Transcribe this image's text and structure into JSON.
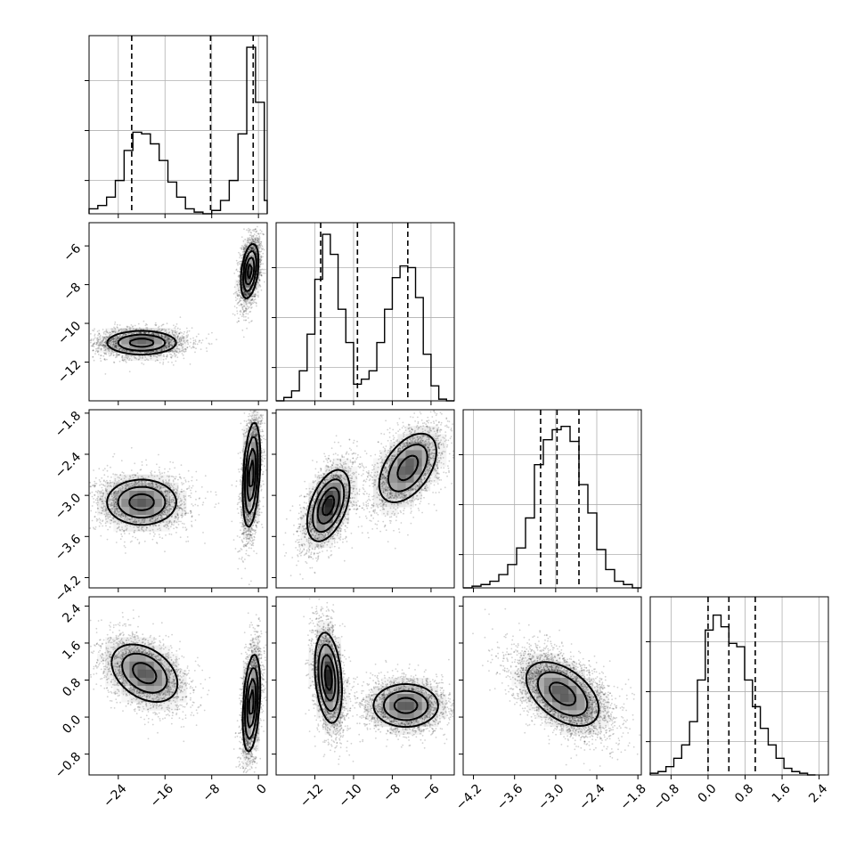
{
  "chart_data": {
    "type": "corner",
    "parameters": [
      {
        "ticks": [
          -24,
          -16,
          -8,
          0
        ],
        "tick_labels": [
          "−24",
          "−16",
          "−8",
          "0"
        ],
        "range": [
          -29,
          1.5
        ],
        "hist": {
          "edges": [
            -29,
            -27.5,
            -26,
            -24.5,
            -23,
            -21.5,
            -20,
            -18.5,
            -17,
            -15.5,
            -14,
            -12.5,
            -11,
            -9.5,
            -8,
            -6.5,
            -5,
            -3.5,
            -2,
            -0.5,
            1,
            1.5
          ],
          "counts": [
            0.03,
            0.05,
            0.1,
            0.2,
            0.38,
            0.49,
            0.48,
            0.42,
            0.32,
            0.19,
            0.1,
            0.03,
            0.01,
            0,
            0.02,
            0.08,
            0.2,
            0.48,
            1.0,
            0.67,
            0.08
          ]
        },
        "quantiles": [
          -21.7,
          -8.2,
          -0.9
        ]
      },
      {
        "ticks": [
          -12,
          -10,
          -8,
          -6
        ],
        "tick_labels": [
          "−12",
          "−10",
          "−8",
          "−6"
        ],
        "range": [
          -14,
          -4.8
        ],
        "hist": {
          "edges": [
            -14,
            -13.6,
            -13.2,
            -12.8,
            -12.4,
            -12,
            -11.6,
            -11.2,
            -10.8,
            -10.4,
            -10,
            -9.6,
            -9.2,
            -8.8,
            -8.4,
            -8,
            -7.6,
            -7.2,
            -6.8,
            -6.4,
            -6,
            -5.6,
            -5.2,
            -4.8
          ],
          "counts": [
            0,
            0.02,
            0.06,
            0.18,
            0.4,
            0.73,
            1.0,
            0.88,
            0.55,
            0.35,
            0.1,
            0.13,
            0.18,
            0.35,
            0.55,
            0.74,
            0.81,
            0.8,
            0.62,
            0.28,
            0.09,
            0.01,
            0
          ]
        },
        "quantiles": [
          -11.7,
          -9.8,
          -7.2
        ]
      },
      {
        "ticks": [
          -4.2,
          -3.6,
          -3.0,
          -2.4,
          -1.8
        ],
        "tick_labels": [
          "−4.2",
          "−3.6",
          "−3.0",
          "−2.4",
          "−1.8"
        ],
        "range": [
          -4.35,
          -1.75
        ],
        "hist": {
          "edges": [
            -4.35,
            -4.22,
            -4.09,
            -3.96,
            -3.83,
            -3.7,
            -3.57,
            -3.44,
            -3.31,
            -3.18,
            -3.05,
            -2.92,
            -2.79,
            -2.66,
            -2.53,
            -2.4,
            -2.27,
            -2.14,
            -2.01,
            -1.88,
            -1.75
          ],
          "counts": [
            0,
            0.01,
            0.02,
            0.04,
            0.08,
            0.14,
            0.24,
            0.42,
            0.74,
            0.89,
            0.95,
            0.97,
            0.88,
            0.62,
            0.45,
            0.23,
            0.11,
            0.04,
            0.02,
            0
          ]
        },
        "quantiles": [
          -3.22,
          -2.98,
          -2.66
        ]
      },
      {
        "ticks": [
          -0.8,
          0.0,
          0.8,
          1.6,
          2.4
        ],
        "tick_labels": [
          "−0.8",
          "0.0",
          "0.8",
          "1.6",
          "2.4"
        ],
        "range": [
          -1.25,
          2.6
        ],
        "hist": {
          "edges": [
            -1.25,
            -1.08,
            -0.91,
            -0.74,
            -0.57,
            -0.4,
            -0.23,
            -0.06,
            0.11,
            0.28,
            0.45,
            0.62,
            0.79,
            0.96,
            1.13,
            1.3,
            1.47,
            1.64,
            1.81,
            1.98,
            2.15,
            2.32
          ],
          "counts": [
            0.01,
            0.02,
            0.05,
            0.1,
            0.18,
            0.32,
            0.57,
            0.87,
            0.96,
            0.89,
            0.79,
            0.77,
            0.57,
            0.41,
            0.28,
            0.18,
            0.1,
            0.04,
            0.02,
            0.01,
            0
          ]
        },
        "quantiles": [
          0.0,
          0.45,
          1.02
        ]
      }
    ],
    "hist_yticks": [
      0.2,
      0.5,
      0.8
    ],
    "pairs": [
      {
        "x": 0,
        "y": 1,
        "modes": [
          {
            "center": [
              -20,
              -11.0
            ],
            "sd": [
              3.2,
              0.55
            ],
            "rot": 0,
            "weight": 1.0,
            "n": 2200
          },
          {
            "center": [
              -1.5,
              -7.3
            ],
            "sd": [
              1.1,
              0.75
            ],
            "rot": 1.15,
            "weight": 1.35,
            "n": 2200
          }
        ]
      },
      {
        "x": 0,
        "y": 2,
        "modes": [
          {
            "center": [
              -20,
              -3.1
            ],
            "sd": [
              3.2,
              0.3
            ],
            "rot": 0,
            "weight": 1.0,
            "n": 2200
          },
          {
            "center": [
              -1.2,
              -2.7
            ],
            "sd": [
              1.1,
              0.4
            ],
            "rot": 1.2,
            "weight": 1.35,
            "n": 2200
          }
        ]
      },
      {
        "x": 1,
        "y": 2,
        "modes": [
          {
            "center": [
              -11.3,
              -3.15
            ],
            "sd": [
              0.7,
              0.3
            ],
            "rot": 0.9,
            "weight": 1.35,
            "n": 2200
          },
          {
            "center": [
              -7.2,
              -2.6
            ],
            "sd": [
              1.0,
              0.32
            ],
            "rot": 0.85,
            "weight": 1.0,
            "n": 2200
          }
        ]
      },
      {
        "x": 0,
        "y": 3,
        "modes": [
          {
            "center": [
              -19.5,
              0.95
            ],
            "sd": [
              3.2,
              0.5
            ],
            "rot": -0.4,
            "weight": 1.0,
            "n": 2200
          },
          {
            "center": [
              -1.2,
              0.3
            ],
            "sd": [
              1.1,
              0.55
            ],
            "rot": 1.2,
            "weight": 1.35,
            "n": 2200
          }
        ]
      },
      {
        "x": 1,
        "y": 3,
        "modes": [
          {
            "center": [
              -11.3,
              0.85
            ],
            "sd": [
              0.55,
              0.5
            ],
            "rot": -1.3,
            "weight": 1.35,
            "n": 2200
          },
          {
            "center": [
              -7.3,
              0.25
            ],
            "sd": [
              0.9,
              0.42
            ],
            "rot": 0,
            "weight": 1.0,
            "n": 2200
          }
        ]
      },
      {
        "x": 2,
        "y": 3,
        "modes": [
          {
            "center": [
              -2.9,
              0.5
            ],
            "sd": [
              0.35,
              0.45
            ],
            "rot": -0.8,
            "weight": 1.0,
            "n": 4000
          }
        ]
      }
    ]
  }
}
